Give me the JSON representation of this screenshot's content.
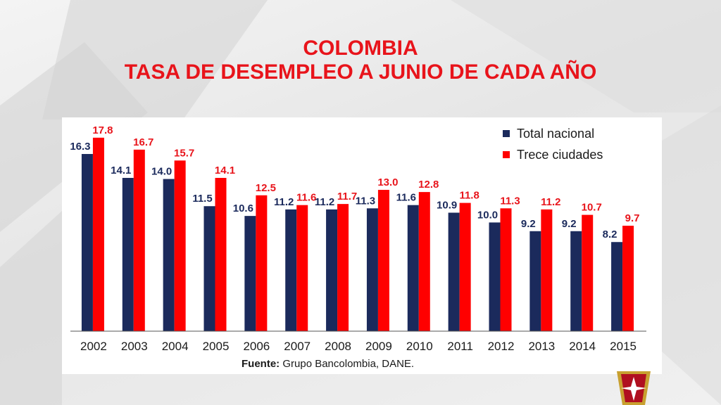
{
  "header": {
    "title_line1": "COLOMBIA",
    "title_line2": "TASA DE DESEMPLEO A JUNIO DE CADA AÑO"
  },
  "source": {
    "label": "Fuente:",
    "text": "Grupo Bancolombia, DANE."
  },
  "colors": {
    "title": "#e8141b",
    "total_nacional": "#1b2a5c",
    "trece_ciudades": "#ff0000",
    "label_total": "#1b2a5c",
    "label_trece": "#e8141b"
  },
  "chart_data": {
    "type": "bar",
    "title": "TASA DE DESEMPLEO A JUNIO DE CADA AÑO",
    "xlabel": "",
    "ylabel": "",
    "ylim": [
      0,
      18.5
    ],
    "grid": false,
    "legend_position": "top-right",
    "categories": [
      "2002",
      "2003",
      "2004",
      "2005",
      "2006",
      "2007",
      "2008",
      "2009",
      "2010",
      "2011",
      "2012",
      "2013",
      "2014",
      "2015"
    ],
    "series": [
      {
        "name": "Total nacional",
        "values": [
          16.3,
          14.1,
          14.0,
          11.5,
          10.6,
          11.2,
          11.2,
          11.3,
          11.6,
          10.9,
          10.0,
          9.2,
          9.2,
          8.2
        ]
      },
      {
        "name": "Trece ciudades",
        "values": [
          17.8,
          16.7,
          15.7,
          14.1,
          12.5,
          11.6,
          11.7,
          13.0,
          12.8,
          11.8,
          11.3,
          11.2,
          10.7,
          9.7
        ]
      }
    ]
  }
}
